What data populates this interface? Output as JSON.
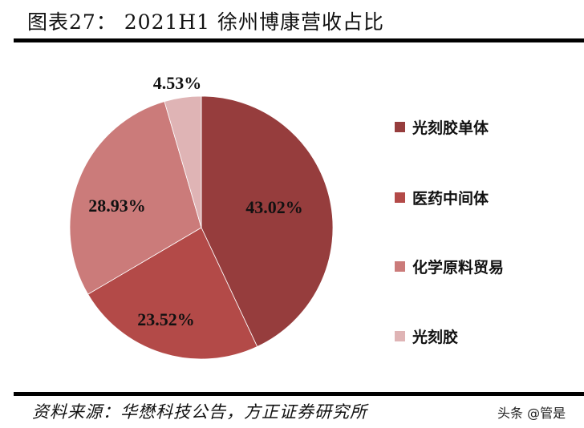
{
  "header": {
    "title": "图表27：  2021H1 徐州博康营收占比"
  },
  "chart_data": {
    "type": "pie",
    "title": "2021H1 徐州博康营收占比",
    "figure_label": "图表27",
    "categories": [
      "光刻胶单体",
      "医药中间体",
      "化学原料贸易",
      "光刻胶"
    ],
    "values": [
      43.02,
      23.52,
      28.93,
      4.53
    ],
    "unit": "%",
    "start_angle_deg": 0,
    "direction": "clockwise",
    "colors": [
      "#963d3d",
      "#b34a48",
      "#cb7b7a",
      "#dfb4b5"
    ],
    "data_labels": [
      "43.02%",
      "23.52%",
      "28.93%",
      "4.53%"
    ],
    "legend_position": "right"
  },
  "legend": {
    "items": [
      {
        "label": "光刻胶单体",
        "color": "#963d3d"
      },
      {
        "label": "医药中间体",
        "color": "#b34a48"
      },
      {
        "label": "化学原料贸易",
        "color": "#cb7b7a"
      },
      {
        "label": "光刻胶",
        "color": "#dfb4b5"
      }
    ]
  },
  "footer": {
    "source": "资料来源：华懋科技公告，方正证券研究所",
    "watermark": "头条 @管是"
  }
}
